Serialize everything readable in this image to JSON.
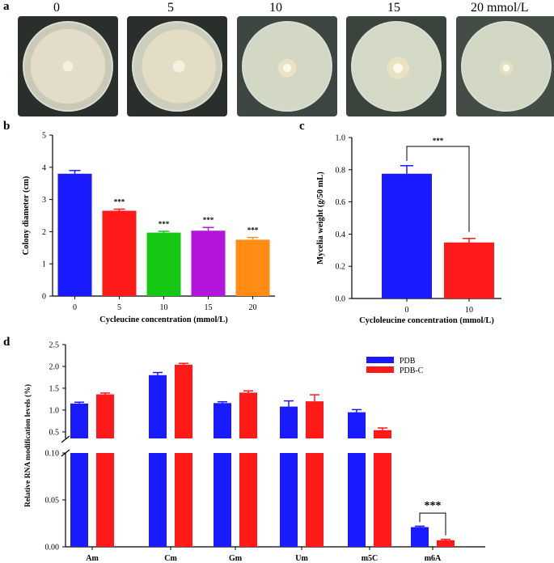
{
  "panel_labels": {
    "a": "a",
    "b": "b",
    "c": "c",
    "d": "d"
  },
  "photo_panel": {
    "concentration_labels": [
      "0",
      "5",
      "10",
      "15",
      "20 mmol/L"
    ]
  },
  "chart_data": [
    {
      "panel": "b",
      "type": "bar",
      "xlabel": "Cycleucine concentration (mmol/L)",
      "ylabel": "Colony diameter (cm)",
      "ylim": [
        0,
        5
      ],
      "yticks": [
        "0",
        "1",
        "2",
        "3",
        "4",
        "5"
      ],
      "categories": [
        "0",
        "5",
        "10",
        "15",
        "20"
      ],
      "values": [
        3.8,
        2.65,
        1.97,
        2.03,
        1.75
      ],
      "errors": [
        0.1,
        0.05,
        0.04,
        0.1,
        0.07
      ],
      "significance": [
        "",
        "***",
        "***",
        "***",
        "***"
      ],
      "colors": [
        "#1a1aff",
        "#ff1a1a",
        "#14c814",
        "#b414dc",
        "#ff8c14"
      ]
    },
    {
      "panel": "c",
      "type": "bar",
      "xlabel": "Cycloleucine concentration (mmol/L)",
      "ylabel": "Mycelia weight (g/50 mL)",
      "ylim": [
        0,
        1.0
      ],
      "yticks": [
        "0.0",
        "0.2",
        "0.4",
        "0.6",
        "0.8",
        "1.0"
      ],
      "categories": [
        "0",
        "10"
      ],
      "values": [
        0.775,
        0.348
      ],
      "errors": [
        0.05,
        0.025
      ],
      "significance_bracket": "***",
      "colors": [
        "#1a1aff",
        "#ff1a1a"
      ]
    },
    {
      "panel": "d",
      "type": "bar",
      "ylabel": "Relative RNA modification levels (%)",
      "axis_break": true,
      "upper_yticks": [
        "0.5",
        "1.0",
        "1.5",
        "2.0",
        "2.5"
      ],
      "upper_ylim": [
        0.35,
        2.5
      ],
      "lower_yticks": [
        "0.00",
        "0.05",
        "0.10"
      ],
      "lower_ylim": [
        0,
        0.1
      ],
      "categories": [
        "Am",
        "Cm",
        "Gm",
        "Um",
        "m5C",
        "m6A"
      ],
      "series": [
        {
          "name": "PDB",
          "color": "#1a1aff",
          "values": [
            1.15,
            1.8,
            1.16,
            1.08,
            0.95,
            0.021
          ],
          "errors": [
            0.03,
            0.06,
            0.03,
            0.13,
            0.06,
            0.001
          ]
        },
        {
          "name": "PDB-C",
          "color": "#ff1a1a",
          "values": [
            1.36,
            2.04,
            1.4,
            1.2,
            0.54,
            0.007
          ],
          "errors": [
            0.03,
            0.03,
            0.04,
            0.15,
            0.05,
            0.001
          ]
        }
      ],
      "significance_bracket": {
        "category": "m6A",
        "text": "***"
      },
      "legend": "top-right"
    }
  ]
}
